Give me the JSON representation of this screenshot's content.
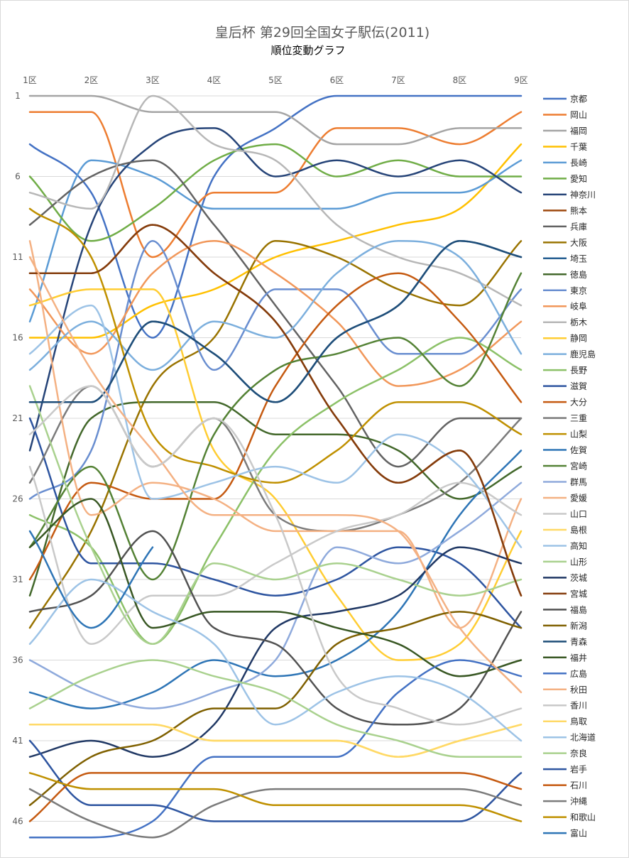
{
  "chart_data": {
    "type": "line",
    "title": "皇后杯 第29回全国女子駅伝(2011)",
    "subtitle": "順位変動グラフ",
    "categories": [
      "1区",
      "2区",
      "3区",
      "4区",
      "5区",
      "6区",
      "7区",
      "8区",
      "9区"
    ],
    "y_ticks": [
      "1",
      "6",
      "11",
      "16",
      "21",
      "26",
      "31",
      "36",
      "41",
      "46"
    ],
    "ylim": [
      1,
      47
    ],
    "y_inverted": true,
    "grid": true,
    "legend_position": "right",
    "series": [
      {
        "name": "京都",
        "color": "#4472C4",
        "values": [
          4,
          7,
          16,
          6,
          3,
          1,
          1,
          1,
          1
        ]
      },
      {
        "name": "岡山",
        "color": "#ED7D31",
        "values": [
          2,
          2,
          11,
          7,
          7,
          3,
          3,
          4,
          2
        ]
      },
      {
        "name": "福岡",
        "color": "#A5A5A5",
        "values": [
          1,
          1,
          2,
          2,
          2,
          4,
          4,
          3,
          3
        ]
      },
      {
        "name": "千葉",
        "color": "#FFC000",
        "values": [
          16,
          16,
          14,
          13,
          11,
          10,
          9,
          8,
          4
        ]
      },
      {
        "name": "長崎",
        "color": "#5B9BD5",
        "values": [
          15,
          5,
          6,
          8,
          8,
          8,
          7,
          7,
          5
        ]
      },
      {
        "name": "愛知",
        "color": "#70AD47",
        "values": [
          6,
          10,
          8,
          5,
          4,
          6,
          5,
          6,
          6
        ]
      },
      {
        "name": "神奈川",
        "color": "#264478",
        "values": [
          23,
          9,
          4,
          3,
          6,
          5,
          6,
          5,
          7
        ]
      },
      {
        "name": "熊本",
        "color": "#9E480E",
        "values": [
          12,
          12,
          9,
          12,
          15,
          21,
          25,
          23,
          32
        ]
      },
      {
        "name": "兵庫",
        "color": "#636363",
        "values": [
          9,
          6,
          5,
          9,
          14,
          19,
          24,
          21,
          21
        ]
      },
      {
        "name": "大阪",
        "color": "#997300",
        "values": [
          34,
          28,
          19,
          16,
          10,
          11,
          13,
          14,
          10
        ]
      },
      {
        "name": "埼玉",
        "color": "#255E91",
        "values": [
          20,
          20,
          15,
          17,
          20,
          16,
          14,
          10,
          11
        ]
      },
      {
        "name": "徳島",
        "color": "#43682B",
        "values": [
          32,
          21,
          20,
          20,
          22,
          22,
          23,
          26,
          24
        ]
      },
      {
        "name": "東京",
        "color": "#698ED0",
        "values": [
          26,
          23,
          10,
          18,
          13,
          13,
          17,
          17,
          13
        ]
      },
      {
        "name": "岐阜",
        "color": "#F1975A",
        "values": [
          13,
          17,
          12,
          10,
          12,
          15,
          19,
          18,
          15
        ]
      },
      {
        "name": "栃木",
        "color": "#B7B7B7",
        "values": [
          7,
          8,
          1,
          4,
          5,
          9,
          11,
          12,
          14
        ]
      },
      {
        "name": "静岡",
        "color": "#FFCD33",
        "values": [
          14,
          13,
          13,
          23,
          26,
          32,
          36,
          35,
          28
        ]
      },
      {
        "name": "鹿児島",
        "color": "#7CAFDD",
        "values": [
          18,
          15,
          18,
          15,
          16,
          12,
          10,
          11,
          17
        ]
      },
      {
        "name": "長野",
        "color": "#8CC168",
        "values": [
          27,
          29,
          35,
          29,
          23,
          20,
          18,
          16,
          18
        ]
      },
      {
        "name": "滋賀",
        "color": "#2E55A0",
        "values": [
          21,
          30,
          30,
          31,
          32,
          31,
          29,
          30,
          34
        ]
      },
      {
        "name": "大分",
        "color": "#C55A11",
        "values": [
          31,
          25,
          26,
          26,
          19,
          14,
          12,
          15,
          20
        ]
      },
      {
        "name": "三重",
        "color": "#7B7B7B",
        "values": [
          25,
          19,
          24,
          21,
          27,
          28,
          27,
          25,
          21
        ]
      },
      {
        "name": "山梨",
        "color": "#BF9000",
        "values": [
          8,
          11,
          22,
          24,
          25,
          23,
          20,
          20,
          22
        ]
      },
      {
        "name": "佐賀",
        "color": "#2E75B6",
        "values": [
          38,
          39,
          38,
          36,
          37,
          36,
          33,
          27,
          23
        ]
      },
      {
        "name": "宮崎",
        "color": "#548235",
        "values": [
          29,
          24,
          31,
          22,
          18,
          17,
          16,
          19,
          12
        ]
      },
      {
        "name": "群馬",
        "color": "#8FAADC",
        "values": [
          36,
          38,
          39,
          38,
          36,
          29,
          30,
          28,
          25
        ]
      },
      {
        "name": "愛媛",
        "color": "#F4B183",
        "values": [
          10,
          27,
          25,
          26,
          28,
          28,
          28,
          34,
          26
        ]
      },
      {
        "name": "山口",
        "color": "#C9C9C9",
        "values": [
          24,
          35,
          32,
          32,
          30,
          28,
          27,
          25,
          27
        ]
      },
      {
        "name": "島根",
        "color": "#FFD966",
        "values": [
          40,
          40,
          40,
          41,
          41,
          41,
          42,
          41,
          40
        ]
      },
      {
        "name": "高知",
        "color": "#9DC3E6",
        "values": [
          17,
          14,
          26,
          25,
          24,
          25,
          22,
          24,
          29
        ]
      },
      {
        "name": "山形",
        "color": "#A9D18E",
        "values": [
          19,
          29,
          35,
          30,
          31,
          30,
          31,
          32,
          31
        ]
      },
      {
        "name": "茨城",
        "color": "#203864",
        "values": [
          42,
          41,
          42,
          40,
          34,
          33,
          32,
          29,
          30
        ]
      },
      {
        "name": "宮城",
        "color": "#843C0C",
        "values": [
          12,
          12,
          9,
          12,
          15,
          21,
          25,
          23,
          32
        ]
      },
      {
        "name": "福島",
        "color": "#525252",
        "values": [
          33,
          32,
          28,
          34,
          35,
          39,
          40,
          39,
          33
        ]
      },
      {
        "name": "新潟",
        "color": "#7F6000",
        "values": [
          45,
          42,
          41,
          39,
          39,
          35,
          34,
          33,
          34
        ]
      },
      {
        "name": "青森",
        "color": "#1F4E79",
        "values": [
          20,
          20,
          15,
          17,
          20,
          16,
          14,
          10,
          11
        ]
      },
      {
        "name": "福井",
        "color": "#385723",
        "values": [
          29,
          26,
          34,
          33,
          33,
          34,
          35,
          37,
          36
        ]
      },
      {
        "name": "広島",
        "color": "#4472C4",
        "values": [
          47,
          47,
          46,
          42,
          42,
          42,
          38,
          36,
          37
        ]
      },
      {
        "name": "秋田",
        "color": "#F4B183",
        "values": [
          11,
          18,
          23,
          27,
          27,
          27,
          28,
          34,
          38
        ]
      },
      {
        "name": "香川",
        "color": "#C9C9C9",
        "values": [
          22,
          19,
          24,
          21,
          27,
          37,
          39,
          40,
          39
        ]
      },
      {
        "name": "鳥取",
        "color": "#FFD966",
        "values": [
          40,
          40,
          40,
          41,
          41,
          41,
          42,
          41,
          40
        ]
      },
      {
        "name": "北海道",
        "color": "#9DC3E6",
        "values": [
          35,
          31,
          33,
          35,
          40,
          38,
          37,
          38,
          41
        ]
      },
      {
        "name": "奈良",
        "color": "#A9D18E",
        "values": [
          39,
          37,
          36,
          37,
          38,
          40,
          41,
          42,
          42
        ]
      },
      {
        "name": "岩手",
        "color": "#2E55A0",
        "values": [
          41,
          45,
          45,
          46,
          46,
          46,
          46,
          46,
          43
        ]
      },
      {
        "name": "石川",
        "color": "#C55A11",
        "values": [
          46,
          43,
          43,
          43,
          43,
          43,
          43,
          43,
          44
        ]
      },
      {
        "name": "沖縄",
        "color": "#7B7B7B",
        "values": [
          44,
          46,
          47,
          45,
          44,
          44,
          44,
          44,
          45
        ]
      },
      {
        "name": "和歌山",
        "color": "#BF9000",
        "values": [
          43,
          44,
          44,
          44,
          45,
          45,
          45,
          45,
          46
        ]
      },
      {
        "name": "富山",
        "color": "#2E75B6",
        "values": [
          28,
          34,
          29,
          null,
          null,
          null,
          null,
          null,
          null
        ]
      }
    ]
  }
}
